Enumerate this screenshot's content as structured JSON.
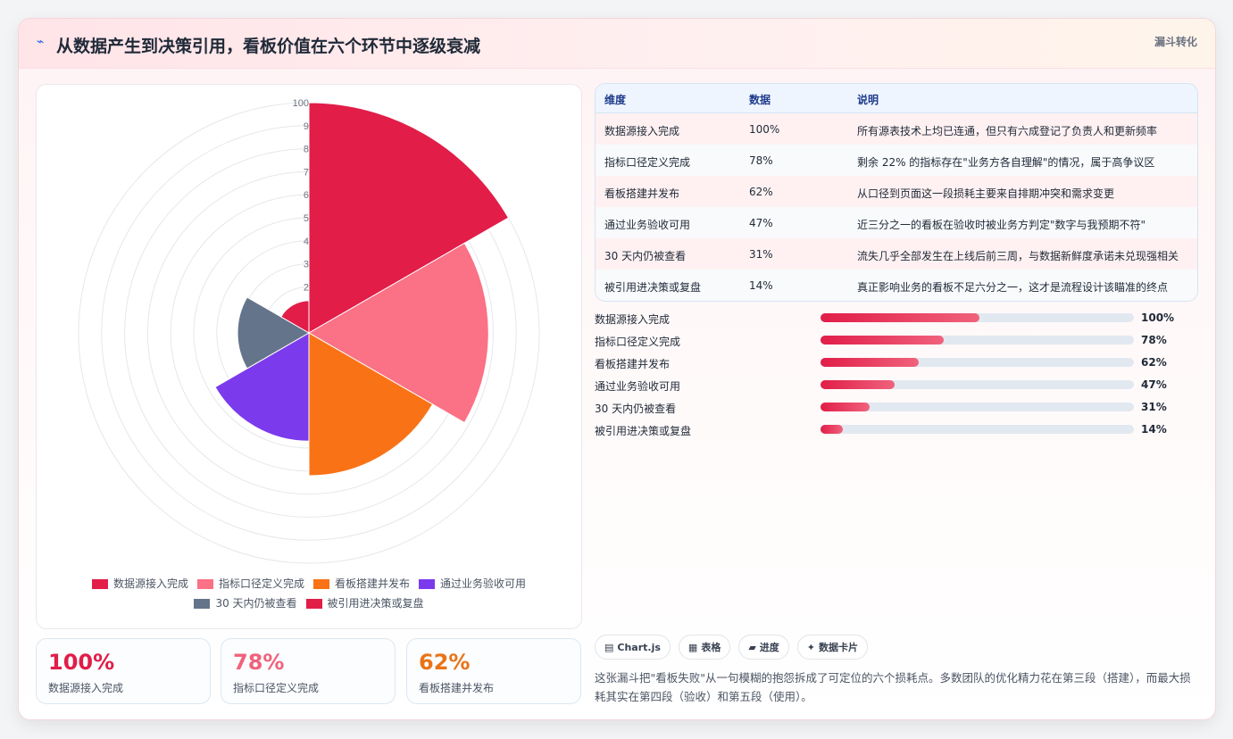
{
  "header": {
    "icon": "lightning-icon",
    "title": "从数据产生到决策引用，看板价值在六个环节中逐级衰减",
    "tag": "漏斗转化"
  },
  "chart_data": {
    "type": "polarArea",
    "categories": [
      "数据源接入完成",
      "指标口径定义完成",
      "看板搭建并发布",
      "通过业务验收可用",
      "30 天内仍被查看",
      "被引用进决策或复盘"
    ],
    "values": [
      100,
      78,
      62,
      47,
      31,
      14
    ],
    "colors": [
      "#e11d48",
      "#fb7185",
      "#f97316",
      "#7c3aed",
      "#64748b",
      "#e11d48"
    ],
    "r_ticks": [
      "2",
      "3",
      "4",
      "5",
      "6",
      "7",
      "8",
      "9",
      "100"
    ],
    "rlim": [
      0,
      100
    ],
    "grid": true,
    "legend": "bottom"
  },
  "table": {
    "headers": [
      "维度",
      "数据",
      "说明"
    ],
    "rows": [
      [
        "数据源接入完成",
        "100%",
        "所有源表技术上均已连通，但只有六成登记了负责人和更新频率"
      ],
      [
        "指标口径定义完成",
        "78%",
        "剩余 22% 的指标存在\"业务方各自理解\"的情况，属于高争议区"
      ],
      [
        "看板搭建并发布",
        "62%",
        "从口径到页面这一段损耗主要来自排期冲突和需求变更"
      ],
      [
        "通过业务验收可用",
        "47%",
        "近三分之一的看板在验收时被业务方判定\"数字与我预期不符\""
      ],
      [
        "30 天内仍被查看",
        "31%",
        "流失几乎全部发生在上线后前三周，与数据新鲜度承诺未兑现强相关"
      ],
      [
        "被引用进决策或复盘",
        "14%",
        "真正影响业务的看板不足六分之一，这才是流程设计该瞄准的终点"
      ]
    ]
  },
  "progress": [
    {
      "label": "数据源接入完成",
      "value": "100%",
      "fill": 0.507
    },
    {
      "label": "指标口径定义完成",
      "value": "78%",
      "fill": 0.393
    },
    {
      "label": "看板搭建并发布",
      "value": "62%",
      "fill": 0.313
    },
    {
      "label": "通过业务验收可用",
      "value": "47%",
      "fill": 0.236
    },
    {
      "label": "30 天内仍被查看",
      "value": "31%",
      "fill": 0.157
    },
    {
      "label": "被引用进决策或复盘",
      "value": "14%",
      "fill": 0.071
    }
  ],
  "stat_cards": [
    {
      "value": "100%",
      "label": "数据源接入完成",
      "color": "#e11d48"
    },
    {
      "value": "78%",
      "label": "指标口径定义完成",
      "color": "#f0627c"
    },
    {
      "value": "62%",
      "label": "看板搭建并发布",
      "color": "#ea7317"
    }
  ],
  "chips": [
    {
      "icon": "chart-icon",
      "label": "Chart.js"
    },
    {
      "icon": "table-icon",
      "label": "表格"
    },
    {
      "icon": "folder-icon",
      "label": "进度"
    },
    {
      "icon": "sparkle-icon",
      "label": "数据卡片"
    }
  ],
  "summary": "这张漏斗把\"看板失败\"从一句模糊的抱怨拆成了可定位的六个损耗点。多数团队的优化精力花在第三段（搭建），而最大损耗其实在第四段（验收）和第五段（使用）。"
}
